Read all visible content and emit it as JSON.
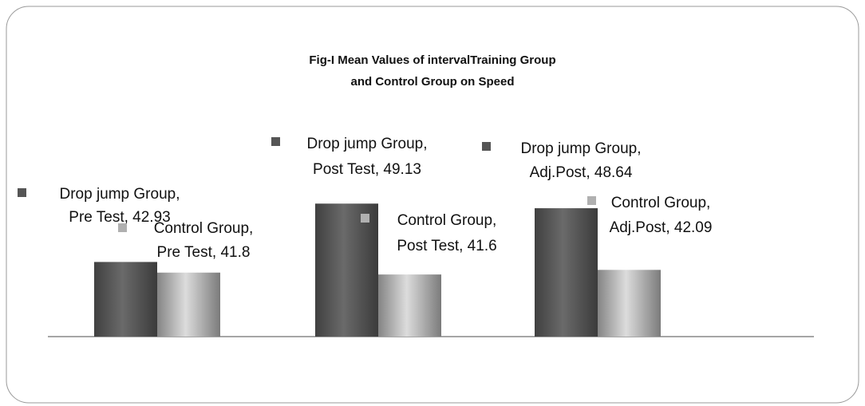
{
  "chart_data": {
    "type": "bar",
    "title": [
      "Fig-I Mean Values of intervalTraining Group",
      "and Control Group on Speed"
    ],
    "ylim": [
      35,
      60
    ],
    "series": [
      {
        "color": "#555555",
        "values": [
          42.93,
          49.13,
          48.64
        ],
        "value_labels": [
          [
            "Drop jump Group,",
            "Pre Test, 42.93"
          ],
          [
            "Drop jump Group,",
            "Post Test, 49.13"
          ],
          [
            "Drop jump Group,",
            "Adj.Post, 48.64"
          ]
        ]
      },
      {
        "color": "#b0b0b0",
        "values": [
          41.8,
          41.6,
          42.09
        ],
        "value_labels": [
          [
            "Control Group,",
            "Pre Test, 41.8"
          ],
          [
            "Control Group,",
            "Post Test, 41.6"
          ],
          [
            "Control Group,",
            "Adj.Post, 42.09"
          ]
        ]
      }
    ]
  }
}
